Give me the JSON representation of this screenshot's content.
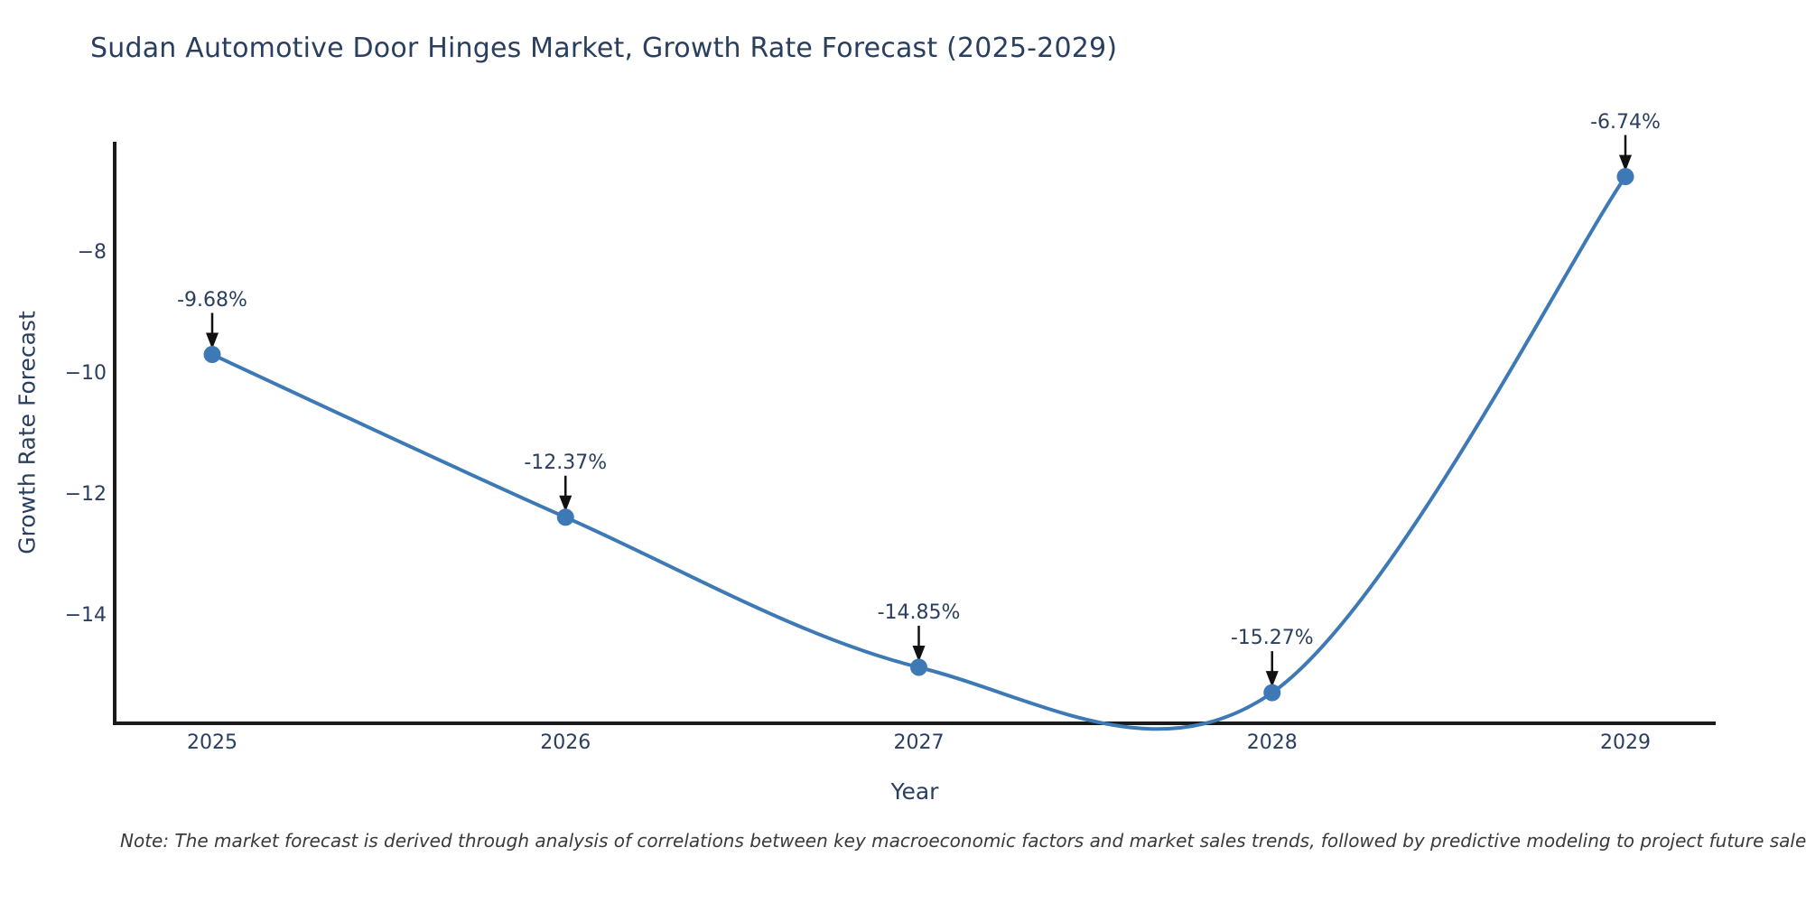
{
  "title": "Sudan Automotive Door Hinges Market, Growth Rate Forecast (2025-2029)",
  "note": "Note: The market forecast is derived through analysis of correlations between key macroeconomic factors and market sales trends, followed by predictive modeling to project future sales",
  "colors": {
    "line": "#3d7ab5",
    "marker": "#3d7ab5",
    "arrow": "#111111",
    "axis": "#1a1a1a",
    "text": "#2a3f5f",
    "note_text": "#3a3a3a",
    "background": "#ffffff"
  },
  "chart_data": {
    "type": "line",
    "title": "Sudan Automotive Door Hinges Market, Growth Rate Forecast (2025-2029)",
    "xlabel": "Year",
    "ylabel": "Growth Rate Forecast",
    "x": [
      2025,
      2026,
      2027,
      2028,
      2029
    ],
    "values": [
      -9.68,
      -12.37,
      -14.85,
      -15.27,
      -6.74
    ],
    "labels": [
      "-9.68%",
      "-12.37%",
      "-14.85%",
      "-15.27%",
      "-6.74%"
    ],
    "x_ticks": [
      "2025",
      "2026",
      "2027",
      "2028",
      "2029"
    ],
    "y_ticks": [
      "−8",
      "−10",
      "−12",
      "−14"
    ],
    "y_tick_values": [
      -8,
      -10,
      -12,
      -14
    ],
    "xlim": [
      2024.72,
      2029.27
    ],
    "ylim": [
      -15.8,
      -6.2
    ],
    "line_shape": "spline",
    "markers": true,
    "grid": false,
    "legend": "none",
    "annotation_arrows": true
  }
}
